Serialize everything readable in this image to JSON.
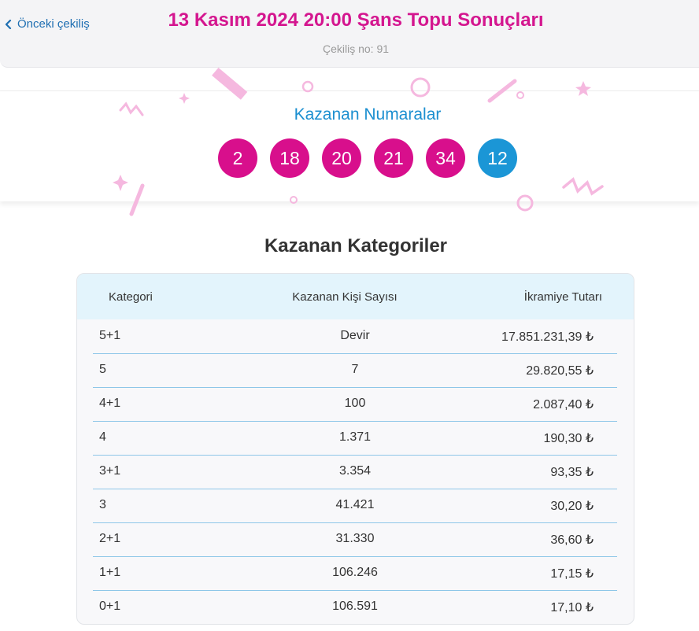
{
  "header": {
    "back_label": "Önceki çekiliş",
    "title": "13 Kasım 2024 20:00 Şans Topu Sonuçları",
    "draw_no": "Çekiliş no: 91"
  },
  "winning": {
    "title": "Kazanan Numaralar",
    "numbers": [
      "2",
      "18",
      "20",
      "21",
      "34"
    ],
    "bonus": "12"
  },
  "categories": {
    "title": "Kazanan Kategoriler",
    "headers": [
      "Kategori",
      "Kazanan Kişi Sayısı",
      "İkramiye Tutarı"
    ],
    "rows": [
      [
        "5+1",
        "Devir",
        "17.851.231,39 ₺"
      ],
      [
        "5",
        "7",
        "29.820,55 ₺"
      ],
      [
        "4+1",
        "100",
        "2.087,40 ₺"
      ],
      [
        "4",
        "1.371",
        "190,30 ₺"
      ],
      [
        "3+1",
        "3.354",
        "93,35 ₺"
      ],
      [
        "3",
        "41.421",
        "30,20 ₺"
      ],
      [
        "2+1",
        "31.330",
        "36,60 ₺"
      ],
      [
        "1+1",
        "106.246",
        "17,15 ₺"
      ],
      [
        "0+1",
        "106.591",
        "17,10 ₺"
      ]
    ]
  },
  "colors": {
    "brand_pink": "#d80f8c",
    "bonus_blue": "#1b96d6",
    "link_blue": "#1f6fb2"
  }
}
